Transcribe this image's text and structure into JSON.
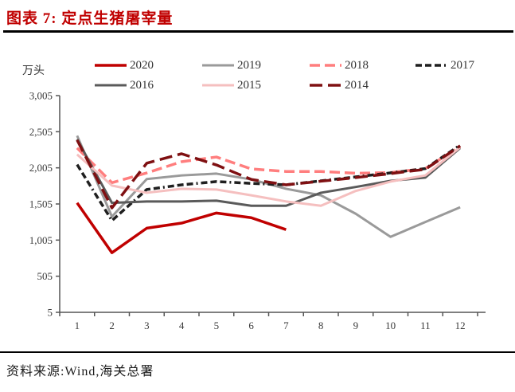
{
  "page": {
    "title": "图表 7: 定点生猪屠宰量",
    "unit_label": "万头",
    "source": "资料来源:Wind,海关总署"
  },
  "chart_data": {
    "type": "line",
    "title": "定点生猪屠宰量",
    "ylabel": "万头",
    "xlabel": "",
    "x": [
      1,
      2,
      3,
      4,
      5,
      6,
      7,
      8,
      9,
      10,
      11,
      12
    ],
    "ylim": [
      5,
      3005
    ],
    "yticks": [
      5,
      505,
      1005,
      1505,
      2005,
      2505,
      3005
    ],
    "ytick_labels": [
      "5",
      "505",
      "1,005",
      "1,505",
      "2,005",
      "2,505",
      "3,005"
    ],
    "grid": false,
    "legend_position": "top",
    "series": [
      {
        "name": "2020",
        "color": "#C00000",
        "style": "solid",
        "width": 3.5,
        "values": [
          1520,
          830,
          1170,
          1240,
          1380,
          1315,
          1150
        ]
      },
      {
        "name": "2019",
        "color": "#9A9A9A",
        "style": "solid",
        "width": 3,
        "values": [
          2450,
          1330,
          1850,
          1900,
          1925,
          1845,
          1715,
          1625,
          1370,
          1050,
          1255,
          1460
        ]
      },
      {
        "name": "2018",
        "color": "#FF7E7E",
        "style": "dashed",
        "width": 3.5,
        "values": [
          2280,
          1800,
          1935,
          2090,
          2155,
          1990,
          1955,
          1955,
          1930,
          1940,
          1995,
          2300
        ]
      },
      {
        "name": "2017",
        "color": "#1F1F1F",
        "style": "dash-dot",
        "width": 3.5,
        "values": [
          2050,
          1275,
          1705,
          1770,
          1815,
          1790,
          1770,
          1825,
          1880,
          1935,
          1995,
          2320
        ]
      },
      {
        "name": "2016",
        "color": "#5A5A5A",
        "style": "solid",
        "width": 3,
        "values": [
          2400,
          1520,
          1540,
          1540,
          1550,
          1480,
          1480,
          1660,
          1740,
          1825,
          1870,
          2280
        ]
      },
      {
        "name": "2015",
        "color": "#F5BFBF",
        "style": "solid",
        "width": 3,
        "values": [
          2190,
          1760,
          1660,
          1715,
          1705,
          1625,
          1540,
          1480,
          1685,
          1815,
          1900,
          2290
        ]
      },
      {
        "name": "2014",
        "color": "#7F1012",
        "style": "long-dash",
        "width": 3.5,
        "values": [
          2390,
          1450,
          2070,
          2200,
          2045,
          1845,
          1770,
          1820,
          1870,
          1925,
          1985,
          2310
        ]
      }
    ]
  }
}
